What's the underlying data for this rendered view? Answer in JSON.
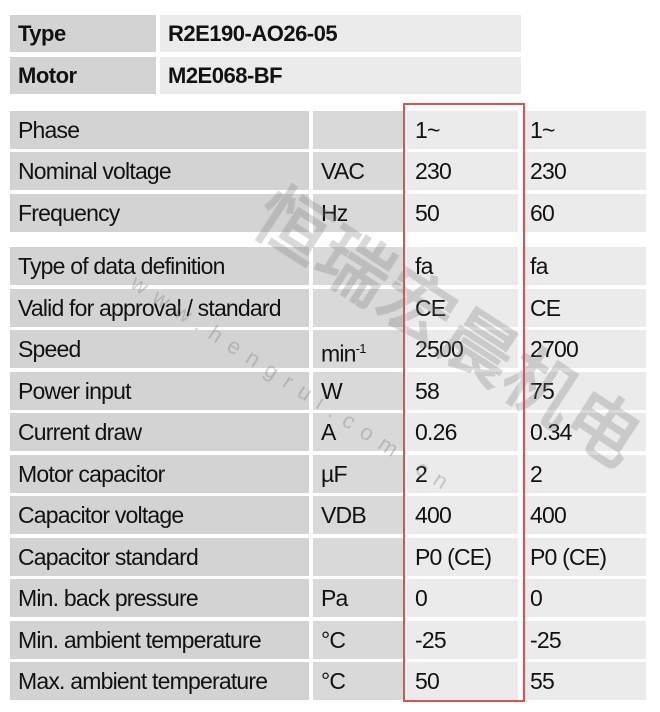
{
  "header": {
    "type_label": "Type",
    "type_value": "R2E190-AO26-05",
    "motor_label": "Motor",
    "motor_value": "M2E068-BF"
  },
  "highlight_color": "#d9534f",
  "watermark": {
    "text": "恒瑞宏晨机电",
    "url": "www.hengrui.com.cn"
  },
  "rows": [
    {
      "label": "Phase",
      "unit": "",
      "v1": "1~",
      "v2": "1~"
    },
    {
      "label": "Nominal voltage",
      "unit": "VAC",
      "v1": "230",
      "v2": "230"
    },
    {
      "label": "Frequency",
      "unit": "Hz",
      "v1": "50",
      "v2": "60"
    },
    {
      "label": "Type of data definition",
      "unit": "",
      "v1": "fa",
      "v2": "fa"
    },
    {
      "label": "Valid for approval / standard",
      "unit": "",
      "v1": "CE",
      "v2": "CE"
    },
    {
      "label": "Speed",
      "unit": "min",
      "unit_sup": "-1",
      "v1": "2500",
      "v2": "2700"
    },
    {
      "label": "Power input",
      "unit": "W",
      "v1": "58",
      "v2": "75"
    },
    {
      "label": "Current draw",
      "unit": "A",
      "v1": "0.26",
      "v2": "0.34"
    },
    {
      "label": "Motor capacitor",
      "unit": "µF",
      "v1": "2",
      "v2": "2"
    },
    {
      "label": "Capacitor voltage",
      "unit": "VDB",
      "v1": "400",
      "v2": "400"
    },
    {
      "label": "Capacitor standard",
      "unit": "",
      "v1": "P0 (CE)",
      "v2": "P0 (CE)"
    },
    {
      "label": "Min. back pressure",
      "unit": "Pa",
      "v1": "0",
      "v2": "0"
    },
    {
      "label": "Min. ambient temperature",
      "unit": "°C",
      "v1": "-25",
      "v2": "-25"
    },
    {
      "label": "Max. ambient temperature",
      "unit": "°C",
      "v1": "50",
      "v2": "55"
    }
  ]
}
